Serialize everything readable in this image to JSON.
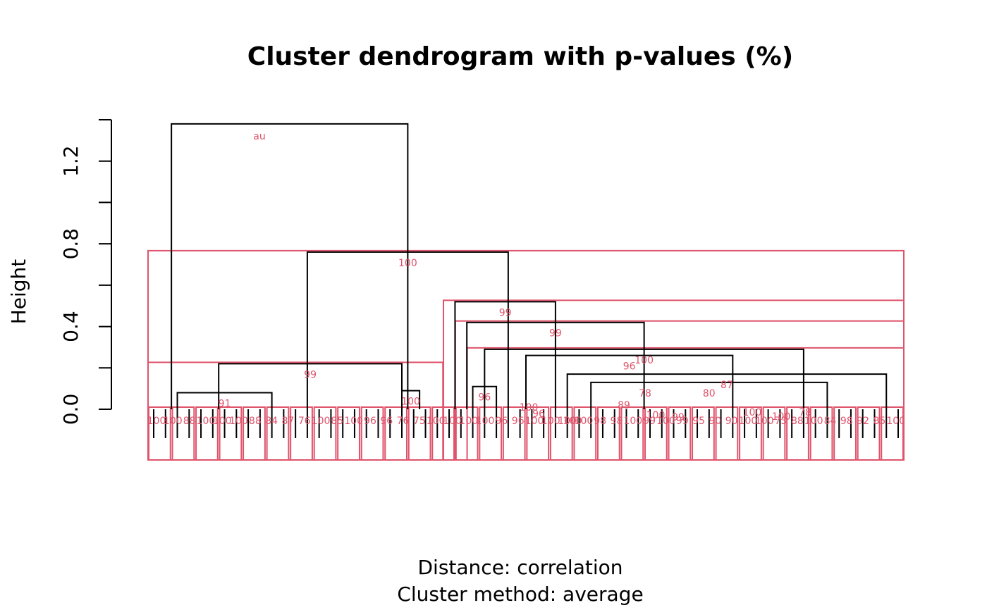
{
  "chart_data": {
    "type": "dendrogram",
    "title": "Cluster dendrogram with p-values (%)",
    "ylabel": "Height",
    "xlabel_lines": [
      "Distance:  correlation",
      "Cluster method: average"
    ],
    "ylim": [
      0,
      1.4
    ],
    "yticks": [
      0.0,
      0.2,
      0.4,
      0.6,
      0.8,
      1.0,
      1.2,
      1.4
    ],
    "ytick_labels": [
      {
        "value": 0.0,
        "label": "0.0"
      },
      {
        "value": 0.4,
        "label": "0.4"
      },
      {
        "value": 0.8,
        "label": "0.8"
      },
      {
        "value": 1.2,
        "label": "1.2"
      }
    ],
    "n_leaves": 64,
    "legend_key": "au",
    "colors": {
      "link": "#000000",
      "highlight": "#DF536B"
    },
    "links": [
      {
        "l": 1.5,
        "r": 21.5,
        "h": 1.38,
        "au": ""
      },
      {
        "l": 13,
        "r": 30,
        "h": 0.76,
        "au": "100"
      },
      {
        "l": 5.5,
        "r": 21,
        "h": 0.22,
        "au": "99"
      },
      {
        "l": 25.5,
        "r": 34,
        "h": 0.52,
        "au": "99"
      },
      {
        "l": 26.5,
        "r": 41.5,
        "h": 0.42,
        "au": "99"
      },
      {
        "l": 28,
        "r": 55,
        "h": 0.29,
        "au": "100"
      },
      {
        "l": 31.5,
        "r": 49,
        "h": 0.26,
        "au": "96"
      },
      {
        "l": 35,
        "r": 62,
        "h": 0.17,
        "au": "87"
      },
      {
        "l": 37,
        "r": 57,
        "h": 0.13,
        "au": "80"
      },
      {
        "l": 27,
        "r": 29,
        "h": 0.11,
        "au": "96"
      },
      {
        "l": 2,
        "r": 10,
        "h": 0.08,
        "au": "91"
      },
      {
        "l": 21,
        "r": 22.5,
        "h": 0.09,
        "au": "100"
      }
    ],
    "leaf_labels": [
      "100",
      "100",
      "88",
      "100",
      "100",
      "100",
      "88",
      "84",
      "87",
      "76",
      "100",
      "85",
      "100",
      "96",
      "96",
      "76",
      "75",
      "100",
      "100",
      "100",
      "100",
      "96",
      "96",
      "100",
      "100",
      "100",
      "100",
      "98",
      "98",
      "100",
      "99",
      "100",
      "99",
      "95",
      "90",
      "90",
      "100",
      "100",
      "73",
      "88",
      "100",
      "84",
      "98",
      "92",
      "85",
      "100"
    ],
    "extra_labels": [
      "100",
      "96",
      "100",
      "89",
      "78",
      "100",
      "99",
      "100",
      "100",
      "78"
    ]
  }
}
